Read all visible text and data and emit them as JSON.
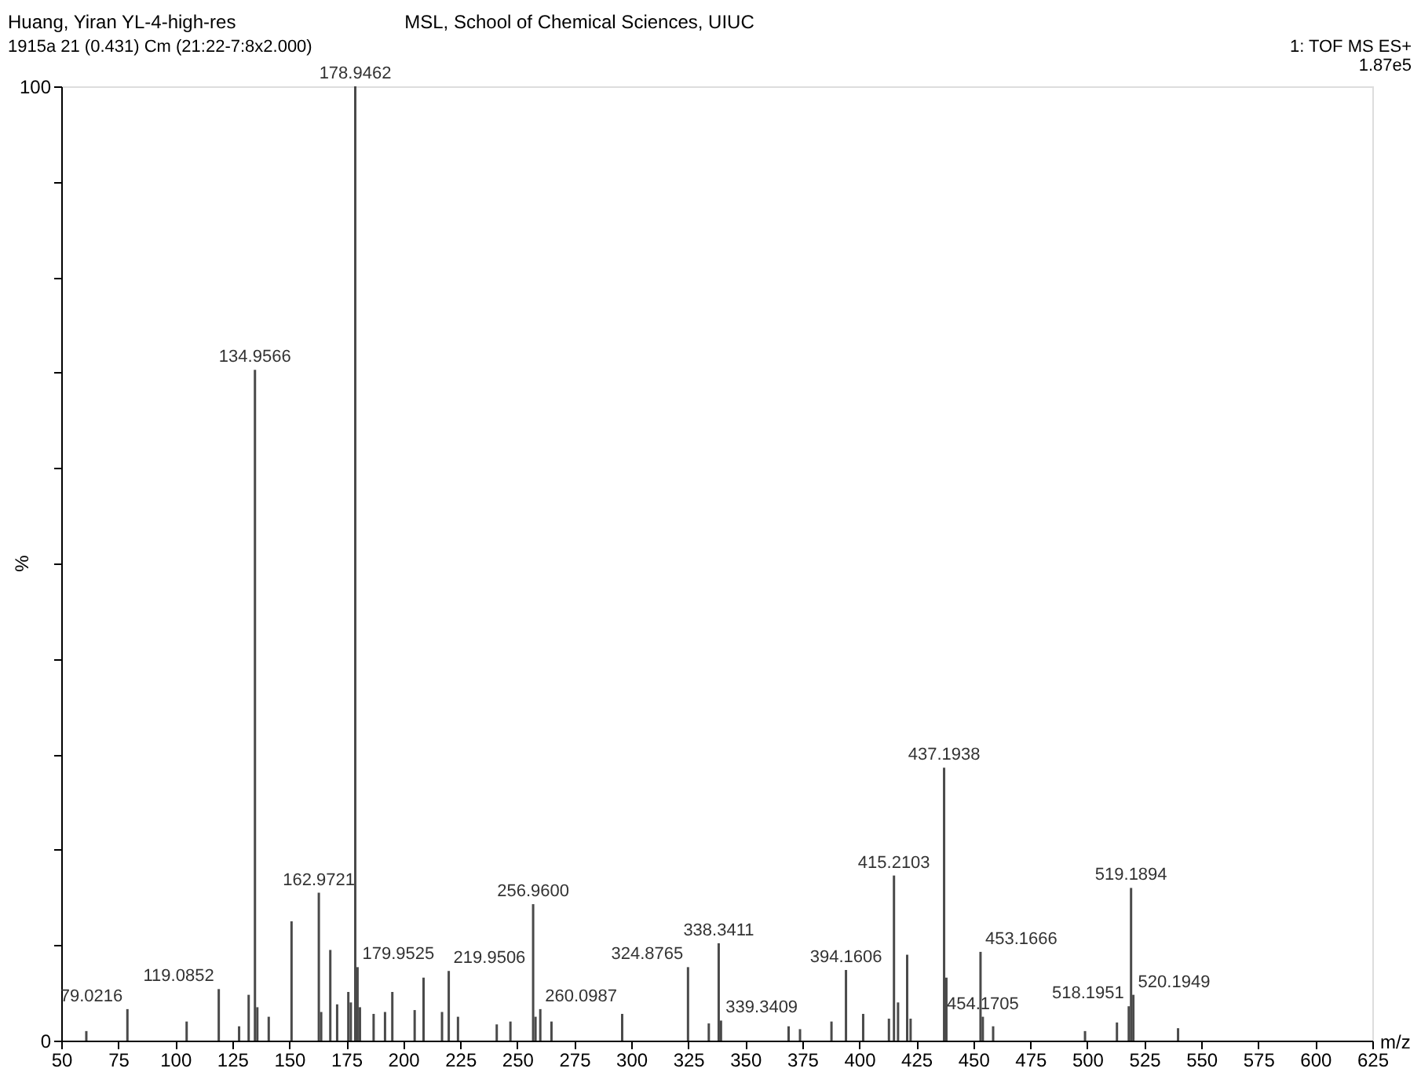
{
  "chart_data": {
    "type": "bar",
    "title": "MSL, School of Chemical Sciences, UIUC",
    "subtitle": "1915a 21 (0.431) Cm (21:22-7:8x2.000)",
    "annotations": [
      "Huang, Yiran YL-4-high-res",
      "1: TOF MS ES+",
      "1.87e5",
      {
        "text": "79.0216",
        "x": 79.0216,
        "y": 3.3
      },
      {
        "text": "119.0852",
        "x": 119.0852,
        "y": 5.4
      },
      {
        "text": "134.9566",
        "x": 134.9566,
        "y": 70.3
      },
      {
        "text": "162.9721",
        "x": 162.9721,
        "y": 15.5
      },
      {
        "text": "178.9462",
        "x": 178.9462,
        "y": 100
      },
      {
        "text": "179.9525",
        "x": 179.9525,
        "y": 7.7
      },
      {
        "text": "219.9506",
        "x": 219.9506,
        "y": 7.3
      },
      {
        "text": "256.9600",
        "x": 256.96,
        "y": 14.3
      },
      {
        "text": "260.0987",
        "x": 260.0987,
        "y": 3.3
      },
      {
        "text": "324.8765",
        "x": 324.8765,
        "y": 7.7
      },
      {
        "text": "338.3411",
        "x": 338.3411,
        "y": 10.2
      },
      {
        "text": "339.3409",
        "x": 339.3409,
        "y": 2.1
      },
      {
        "text": "394.1606",
        "x": 394.1606,
        "y": 7.4
      },
      {
        "text": "415.2103",
        "x": 415.2103,
        "y": 17.3
      },
      {
        "text": "437.1938",
        "x": 437.1938,
        "y": 28.6
      },
      {
        "text": "453.1666",
        "x": 453.1666,
        "y": 9.3
      },
      {
        "text": "454.1705",
        "x": 454.1705,
        "y": 2.5
      },
      {
        "text": "518.1951",
        "x": 518.1951,
        "y": 3.6
      },
      {
        "text": "519.1894",
        "x": 519.1894,
        "y": 16.0
      },
      {
        "text": "520.1949",
        "x": 520.1949,
        "y": 4.8
      }
    ],
    "xlabel": "m/z",
    "ylabel": "%",
    "x": [
      61,
      79.0216,
      105,
      119.0852,
      128,
      132.2,
      134.9566,
      136,
      141,
      151,
      162.9721,
      164,
      168,
      171,
      175.9,
      177,
      178.9462,
      179.9525,
      181,
      187,
      192,
      195.2,
      205,
      208.9,
      217,
      219.9506,
      224,
      241,
      247,
      256.96,
      258,
      260.0987,
      265,
      296,
      324.8765,
      334,
      338.3411,
      339.3409,
      369,
      374,
      387.8,
      394.1606,
      401.7,
      413,
      415.2103,
      417,
      421,
      422.5,
      437.1938,
      438.2,
      453.1666,
      454.1705,
      458.7,
      499,
      513,
      518.1951,
      519.1894,
      520.1949,
      539.8
    ],
    "values": [
      1.0,
      3.3,
      2.0,
      5.4,
      1.5,
      4.8,
      70.3,
      3.5,
      2.5,
      12.5,
      15.5,
      3.0,
      9.5,
      3.8,
      5.1,
      4.0,
      100,
      7.7,
      3.5,
      2.8,
      3.0,
      5.1,
      3.2,
      6.6,
      3.0,
      7.3,
      2.5,
      1.7,
      2.0,
      14.3,
      2.5,
      3.3,
      2.0,
      2.8,
      7.7,
      1.8,
      10.2,
      2.1,
      1.5,
      1.2,
      2.0,
      7.4,
      2.8,
      2.3,
      17.3,
      4.0,
      9.0,
      2.3,
      28.6,
      6.6,
      9.3,
      2.5,
      1.5,
      1.0,
      1.9,
      3.6,
      16.0,
      4.8,
      1.3
    ],
    "color": "#4a4a4a",
    "xlim": [
      50,
      625
    ],
    "xticks": [
      50,
      75,
      100,
      125,
      150,
      175,
      200,
      225,
      250,
      275,
      300,
      325,
      350,
      375,
      400,
      425,
      450,
      475,
      500,
      525,
      550,
      575,
      600,
      625
    ],
    "ylim": [
      0,
      100
    ],
    "yticks": [
      0,
      {
        "value": 10,
        "label": null
      },
      {
        "value": 20,
        "label": null
      },
      {
        "value": 30,
        "label": null
      },
      {
        "value": 40,
        "label": null
      },
      {
        "value": 50,
        "label": null
      },
      {
        "value": 60,
        "label": null
      },
      {
        "value": 70,
        "label": null
      },
      {
        "value": 80,
        "label": null
      },
      {
        "value": 90,
        "label": null
      },
      100
    ],
    "grid": false
  }
}
